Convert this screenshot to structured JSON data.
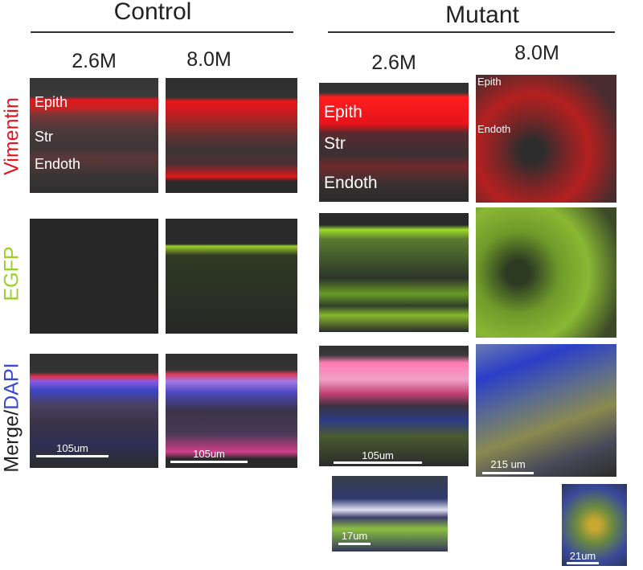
{
  "groups": [
    {
      "title": "Control",
      "columns": [
        "2.6M",
        "8.0M"
      ]
    },
    {
      "title": "Mutant",
      "columns": [
        "2.6M",
        "8.0M"
      ]
    }
  ],
  "row_labels": [
    {
      "text": "Vimentin"
    },
    {
      "text": "EGFP"
    },
    {
      "parts": [
        "Merge/",
        "DAPI"
      ]
    }
  ],
  "panel_labels": {
    "control_2_6M": [
      "Epith",
      "Str",
      "Endoth"
    ],
    "mutant_2_6M": [
      "Epith",
      "Str",
      "Endoth"
    ],
    "mutant_8_0M": [
      "Epith",
      "Endoth"
    ]
  },
  "scale_bars": {
    "control_2_6M": "105um",
    "control_8_0M": "105um",
    "mutant_2_6M": "105um",
    "mutant_8_0M": "215 um",
    "inset_2_6M": "17um",
    "inset_8_0M": "21um"
  }
}
